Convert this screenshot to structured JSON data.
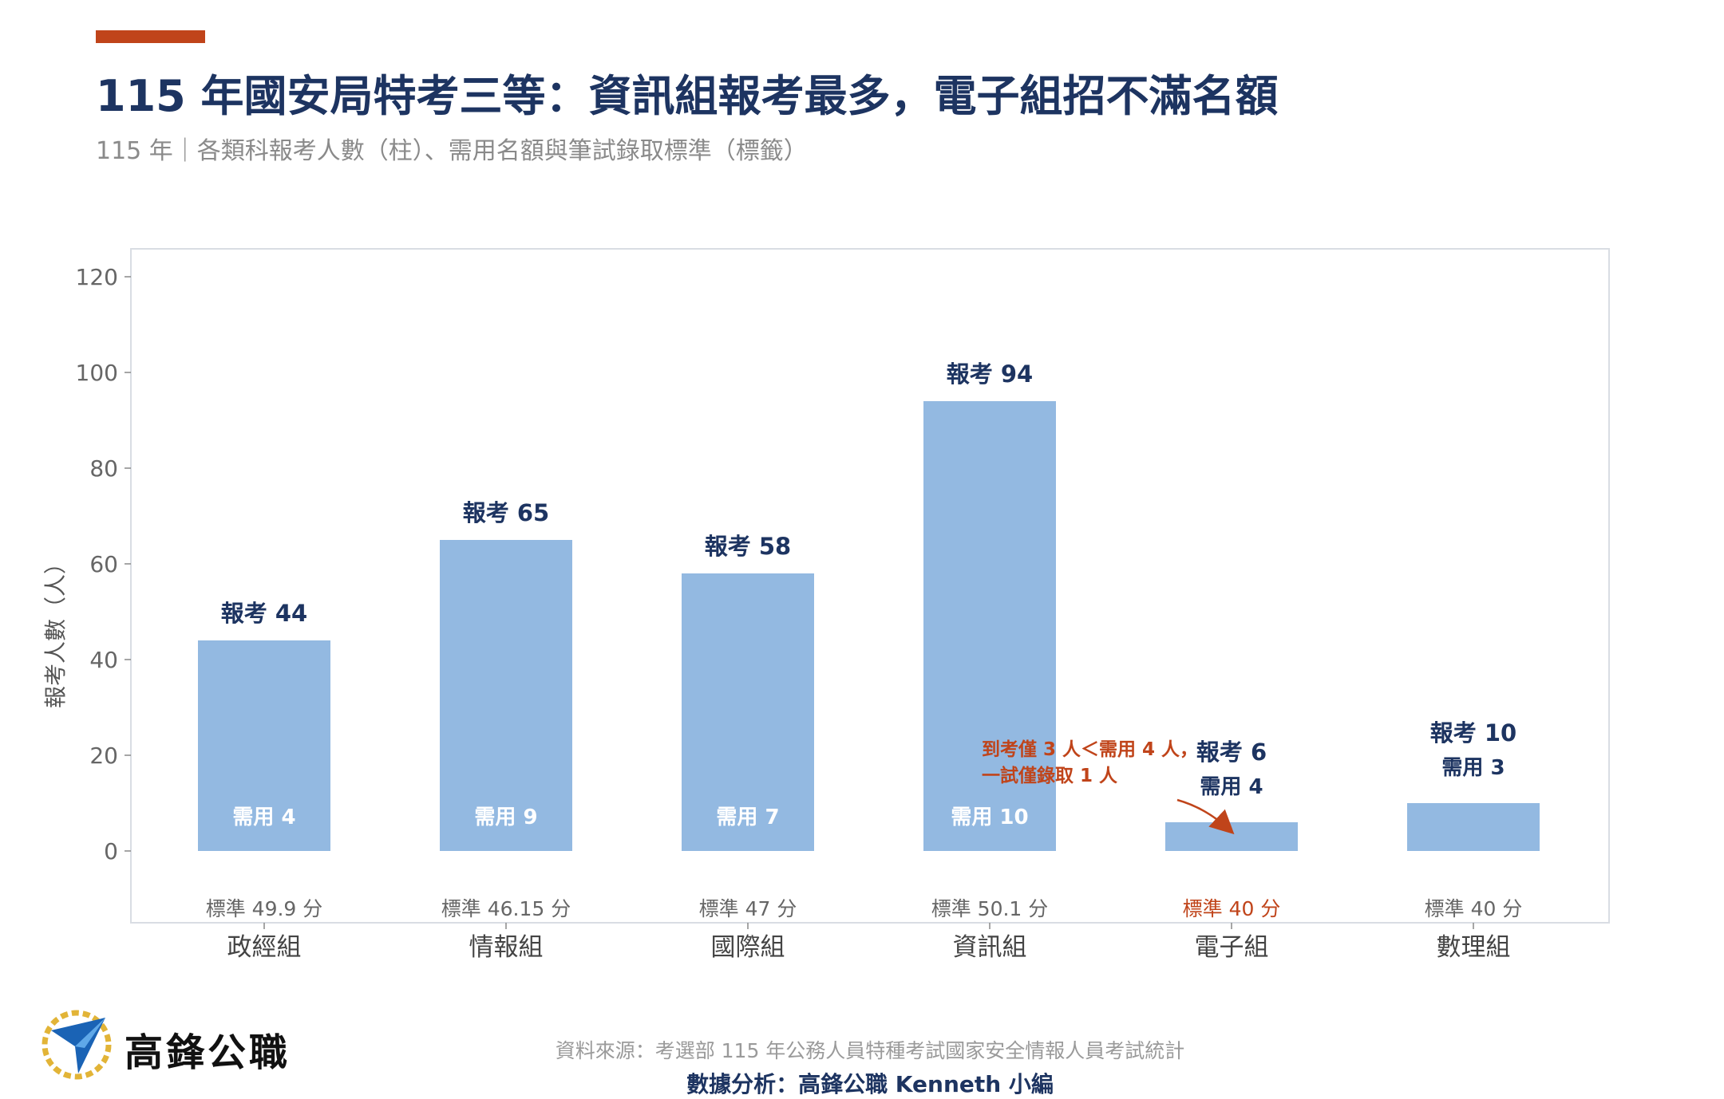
{
  "header": {
    "title": "115 年國安局特考三等：資訊組報考最多，電子組招不滿名額",
    "subtitle": "115 年｜各類科報考人數（柱）、需用名額與筆試錄取標準（標籤）"
  },
  "colors": {
    "accent": "#c0441a",
    "bar": "#93b9e1",
    "navy": "#1d3461",
    "warn": "#c0441a",
    "axis": "#666666",
    "frame": "#d9dde3"
  },
  "chart_data": {
    "type": "bar",
    "title": "",
    "ylabel": "報考人數（人）",
    "xlabel": "",
    "ylim": [
      -15,
      122
    ],
    "yticks": [
      0,
      20,
      40,
      60,
      80,
      100,
      120
    ],
    "grid": false,
    "categories": [
      "政經組",
      "情報組",
      "國際組",
      "資訊組",
      "電子組",
      "數理組"
    ],
    "values": [
      44,
      65,
      58,
      94,
      6,
      10
    ],
    "top_labels": [
      "報考 44",
      "報考 65",
      "報考 58",
      "報考 94",
      "報考 6",
      "報考 10"
    ],
    "quota_labels": [
      "需用 4",
      "需用 9",
      "需用 7",
      "需用 10",
      "需用 4",
      "需用 3"
    ],
    "quota_inside_bar": [
      true,
      true,
      true,
      true,
      false,
      false
    ],
    "standard_labels": [
      "標準 49.9 分",
      "標準 46.15 分",
      "標準 47 分",
      "標準 50.1 分",
      "標準 40 分",
      "標準 40 分"
    ],
    "standard_highlight": [
      false,
      false,
      false,
      false,
      true,
      false
    ],
    "annotation": {
      "category": "電子組",
      "lines": [
        "到考僅 3 人＜需用 4 人，",
        "一試僅錄取 1 人"
      ]
    }
  },
  "footer": {
    "brand": "高鋒公職",
    "source": "資料來源：考選部 115 年公務人員特種考試國家安全情報人員考試統計",
    "analysis": "數據分析：高鋒公職 Kenneth 小編"
  }
}
